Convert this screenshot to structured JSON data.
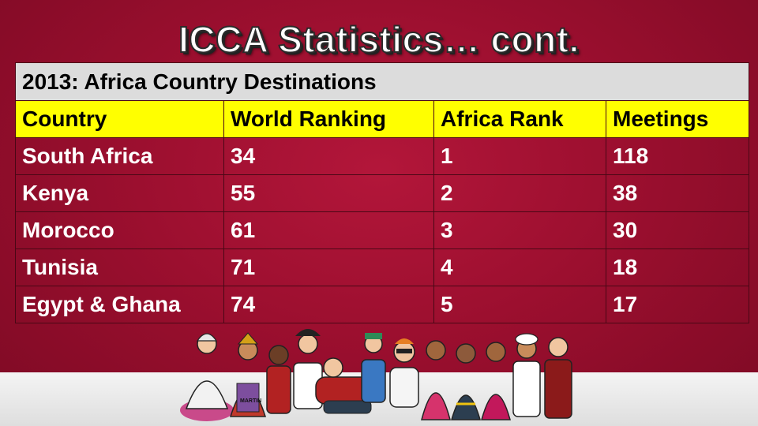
{
  "slide": {
    "title": "ICCA Statistics… cont."
  },
  "table": {
    "caption": "2013: Africa Country Destinations",
    "columns": [
      "Country",
      "World Ranking",
      "Africa Rank",
      "Meetings"
    ],
    "rows": [
      [
        "South Africa",
        "34",
        "1",
        "118"
      ],
      [
        "Kenya",
        "55",
        "2",
        "38"
      ],
      [
        "Morocco",
        "61",
        "3",
        "30"
      ],
      [
        "Tunisia",
        "71",
        "4",
        "18"
      ],
      [
        "Egypt & Ghana",
        "74",
        "5",
        "17"
      ]
    ]
  },
  "illustration": {
    "icon": "diverse-people-crowd-illustration",
    "signature": "MARTIN"
  },
  "colors": {
    "background": "#9c0f2f",
    "caption_fill": "#dcdcdc",
    "header_fill": "#ffff00",
    "data_text": "#ffffff",
    "title_text": "#ffffff"
  }
}
